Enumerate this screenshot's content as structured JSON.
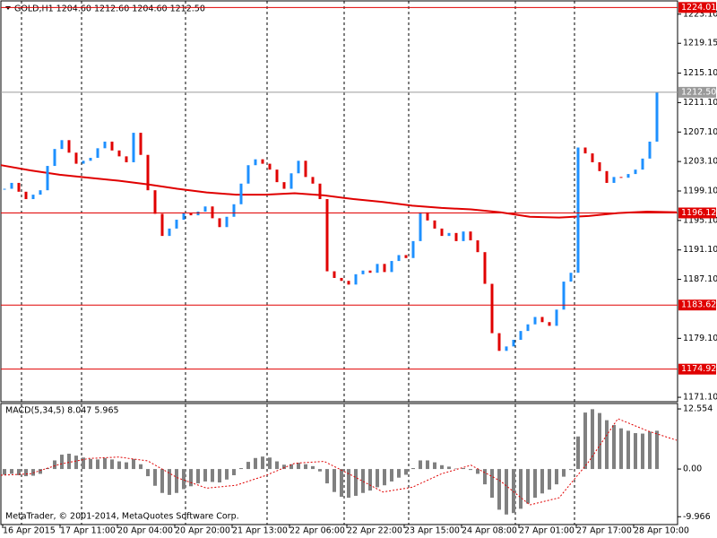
{
  "chart_data": [
    {
      "type": "candlestick",
      "title": "GOLD,H1  1204.60 1212.60 1204.60 1212.50",
      "up_color": "#1e90ff",
      "down_color": "#e00000",
      "values": [
        1199.4,
        1200.2,
        1199.0,
        1198.0,
        1198.6,
        1199.2,
        1202.5,
        1204.8,
        1206.0,
        1204.3,
        1202.8,
        1203.2,
        1203.6,
        1204.9,
        1205.8,
        1204.6,
        1203.8,
        1203.0,
        1207.0,
        1204.0,
        1199.2,
        1196.0,
        1193.0,
        1194.0,
        1195.2,
        1196.1,
        1195.8,
        1196.3,
        1197.0,
        1195.4,
        1194.2,
        1195.6,
        1197.3,
        1200.1,
        1202.6,
        1203.4,
        1202.8,
        1202.0,
        1200.3,
        1199.4,
        1201.5,
        1203.2,
        1201.0,
        1200.1,
        1198.0,
        1188.2,
        1187.3,
        1186.9,
        1186.4,
        1187.8,
        1188.3,
        1188.0,
        1189.2,
        1188.1,
        1189.6,
        1190.4,
        1190.0,
        1192.3,
        1196.2,
        1195.1,
        1194.0,
        1193.0,
        1193.4,
        1192.3,
        1193.6,
        1192.4,
        1190.8,
        1186.5,
        1179.8,
        1177.4,
        1178.0,
        1178.9,
        1180.1,
        1181.0,
        1182.0,
        1181.3,
        1180.8,
        1183.0,
        1186.8,
        1188.0,
        1205.0,
        1204.2,
        1203.0,
        1201.8,
        1200.2,
        1201.0,
        1200.9,
        1201.4,
        1202.0,
        1203.5,
        1205.8,
        1212.5
      ],
      "ma": {
        "color": "#e00000",
        "values": [
          1202.6,
          1201.9,
          1201.3,
          1200.9,
          1200.5,
          1200.0,
          1199.4,
          1198.9,
          1198.6,
          1198.6,
          1198.8,
          1198.5,
          1198.0,
          1197.6,
          1197.1,
          1196.8,
          1196.6,
          1196.2,
          1195.6,
          1195.5,
          1195.7,
          1196.1,
          1196.3,
          1196.2
        ]
      },
      "levels": [
        {
          "value": 1224.01,
          "color": "#e00000"
        },
        {
          "value": 1212.5,
          "label": "1212.50",
          "color": "#9a9a9a"
        },
        {
          "value": 1196.12,
          "color": "#e00000"
        },
        {
          "value": 1183.62,
          "color": "#e00000"
        },
        {
          "value": 1174.92,
          "color": "#e00000"
        }
      ],
      "ylim": [
        1170.5,
        1224.9
      ],
      "yticks": [
        {
          "value": 1223.1,
          "label": "1223.10"
        },
        1219.15,
        {
          "value": 1215.1,
          "label": "1215.10"
        },
        {
          "value": 1211.1,
          "label": "1211.10"
        },
        {
          "value": 1207.1,
          "label": "1207.10"
        },
        {
          "value": 1203.1,
          "label": "1203.10"
        },
        {
          "value": 1199.1,
          "label": "1199.10"
        },
        {
          "value": 1195.1,
          "label": "1195.10"
        },
        {
          "value": 1191.1,
          "label": "1191.10"
        },
        {
          "value": 1187.1,
          "label": "1187.10"
        },
        {
          "value": 1179.1,
          "label": "1179.10"
        },
        {
          "value": 1171.1,
          "label": "1171.10"
        }
      ],
      "x_labels": [
        "16 Apr 2015",
        "17 Apr 11:00",
        "20 Apr 04:00",
        "20 Apr 20:00",
        "21 Apr 13:00",
        "22 Apr 06:00",
        "22 Apr 22:00",
        "23 Apr 15:00",
        "24 Apr 08:00",
        "27 Apr 01:00",
        "27 Apr 17:00",
        "28 Apr 10:00"
      ]
    },
    {
      "type": "macd",
      "title": "MACD(5,34,5) 8.047 5.965",
      "color": "#808080",
      "values": [
        -1.2,
        -1.0,
        -1.3,
        -1.5,
        -1.4,
        -1.0,
        0.2,
        1.8,
        3.0,
        3.2,
        2.8,
        2.4,
        2.1,
        2.0,
        2.3,
        2.0,
        1.6,
        1.4,
        2.1,
        1.0,
        -1.5,
        -3.5,
        -5.0,
        -5.4,
        -5.0,
        -4.2,
        -3.6,
        -3.0,
        -2.6,
        -2.7,
        -2.8,
        -2.2,
        -1.3,
        0.2,
        1.5,
        2.3,
        2.6,
        2.4,
        1.6,
        0.9,
        1.0,
        1.3,
        1.0,
        0.6,
        -0.5,
        -3.0,
        -4.8,
        -5.8,
        -6.0,
        -5.6,
        -5.0,
        -4.5,
        -3.8,
        -3.4,
        -2.6,
        -1.8,
        -1.2,
        0.2,
        1.8,
        1.8,
        1.4,
        0.8,
        0.5,
        0.1,
        0.2,
        -0.2,
        -1.0,
        -3.2,
        -6.0,
        -8.5,
        -9.5,
        -9.2,
        -8.3,
        -7.2,
        -6.0,
        -5.1,
        -4.3,
        -3.2,
        -1.6,
        -0.2,
        6.8,
        11.8,
        12.5,
        11.7,
        10.2,
        9.2,
        8.5,
        8.0,
        7.5,
        7.4,
        7.8,
        8.0
      ],
      "signal": {
        "color": "#e00000",
        "values": [
          -1.3,
          -1.0,
          1.0,
          2.2,
          2.5,
          1.7,
          -1.8,
          -4.0,
          -3.4,
          -1.4,
          1.2,
          1.6,
          -1.5,
          -4.8,
          -3.8,
          -1.0,
          0.8,
          -2.5,
          -7.5,
          -6.0,
          1.5,
          10.5,
          8.0,
          6.0
        ]
      },
      "ylim": [
        -11.6,
        13.5
      ],
      "yticks": [
        12.554,
        {
          "value": 0,
          "label": "0.00"
        },
        -9.966
      ]
    }
  ],
  "footer": "MetaTrader, © 2001-2014, MetaQuotes Software Corp."
}
